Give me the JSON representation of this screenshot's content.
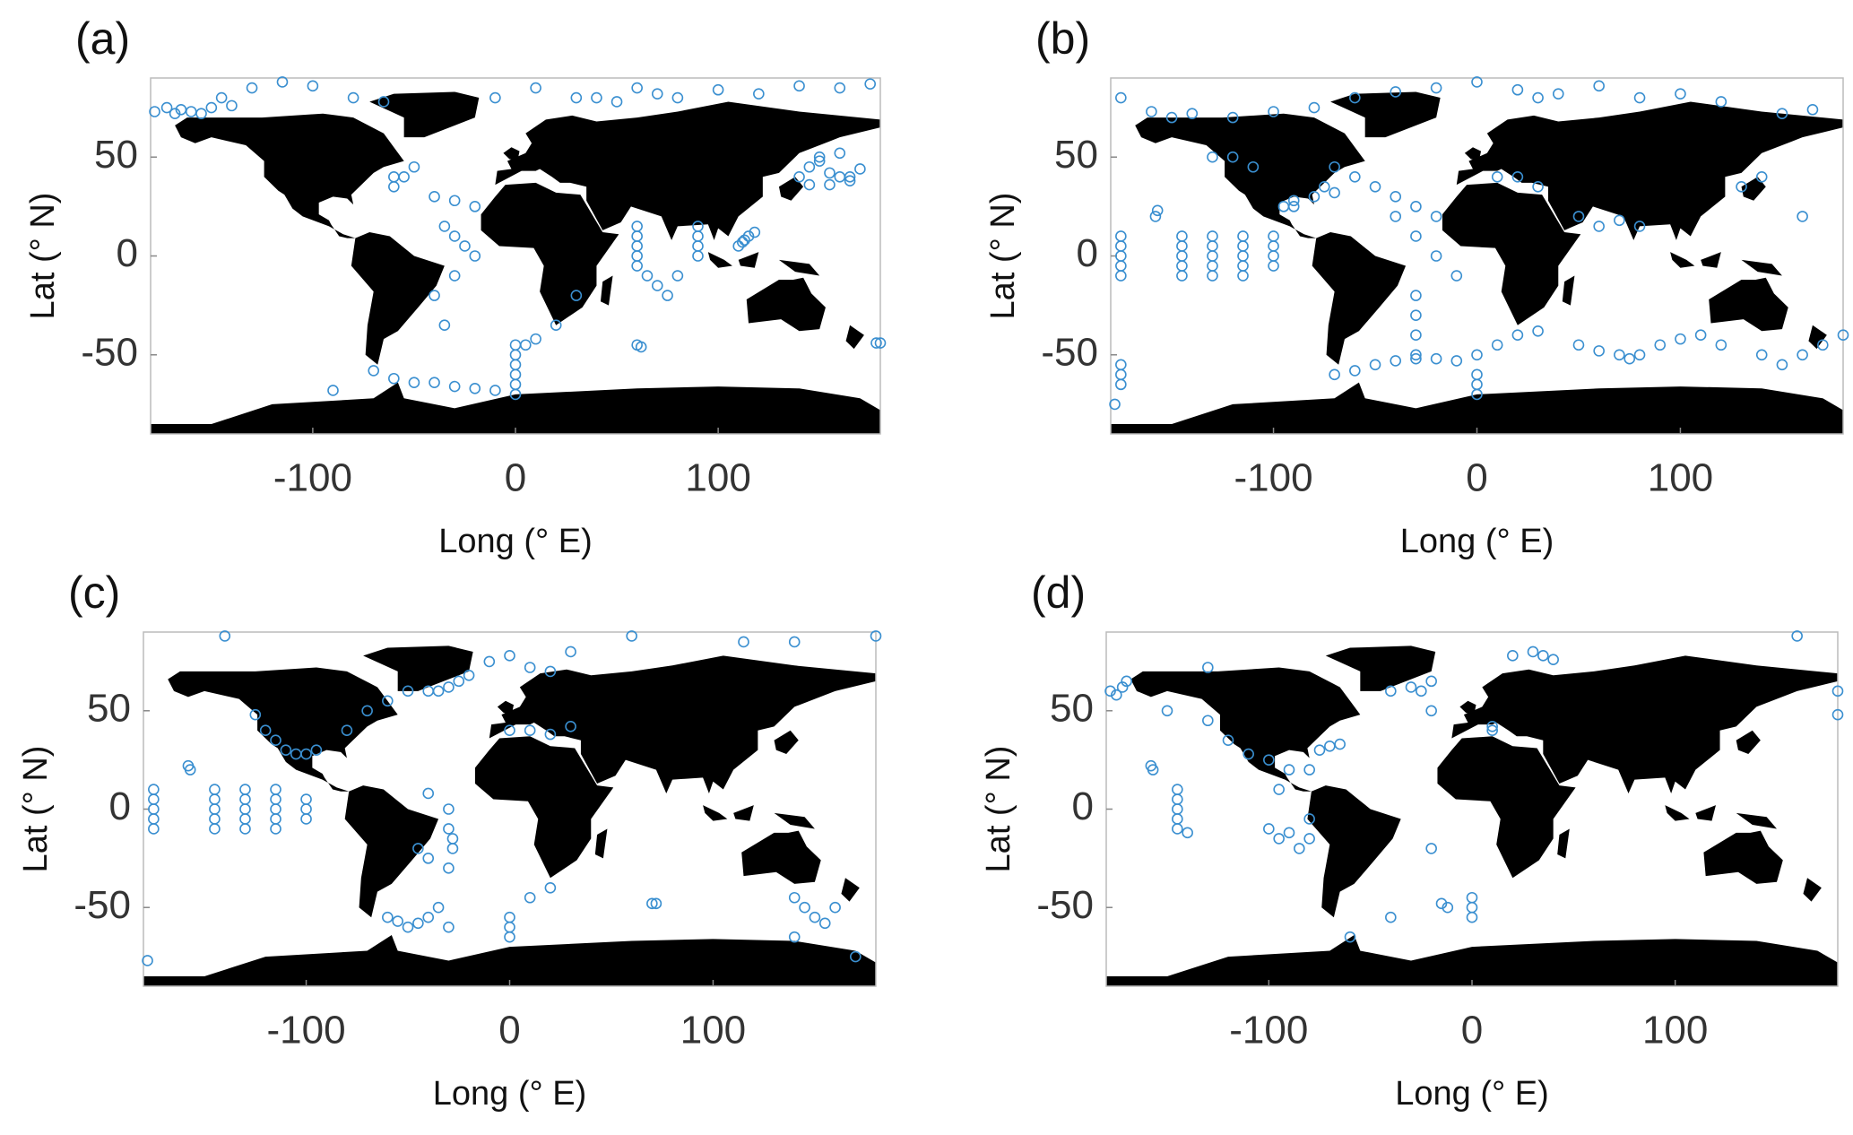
{
  "chart_data": [
    {
      "type": "scatter",
      "title": "(a)",
      "xlabel": "Long (° E)",
      "ylabel": "Lat (° N)",
      "color": "#3a8fd0",
      "xlim": [
        -180,
        180
      ],
      "ylim": [
        -90,
        90
      ],
      "xticks": [
        -100,
        0,
        100
      ],
      "yticks": [
        -50,
        0,
        50
      ],
      "x": [
        -178,
        -172,
        -168,
        -165,
        -160,
        -155,
        -150,
        -145,
        -140,
        -130,
        -115,
        -100,
        -80,
        -65,
        -60,
        -40,
        -30,
        -20,
        -10,
        10,
        30,
        40,
        50,
        60,
        70,
        80,
        100,
        120,
        140,
        160,
        175,
        140,
        145,
        150,
        155,
        160,
        165,
        170,
        145,
        155,
        165,
        150,
        160,
        -50,
        -55,
        -60,
        -35,
        -30,
        -25,
        -20,
        -30,
        -40,
        -35,
        60,
        60,
        60,
        60,
        60,
        65,
        70,
        75,
        80,
        90,
        90,
        90,
        90,
        110,
        113,
        115,
        118,
        112,
        -90,
        -70,
        -60,
        -50,
        -40,
        -30,
        -20,
        -10,
        0,
        0,
        0,
        0,
        0,
        0,
        5,
        10,
        20,
        30,
        60,
        62,
        178,
        180
      ],
      "y": [
        73,
        75,
        72,
        74,
        73,
        72,
        75,
        80,
        76,
        85,
        88,
        86,
        80,
        78,
        40,
        30,
        28,
        25,
        80,
        85,
        80,
        80,
        78,
        85,
        82,
        80,
        84,
        82,
        86,
        85,
        87,
        40,
        45,
        48,
        42,
        40,
        38,
        44,
        36,
        36,
        40,
        50,
        52,
        45,
        40,
        35,
        15,
        10,
        5,
        0,
        -10,
        -20,
        -35,
        15,
        10,
        5,
        0,
        -5,
        -10,
        -15,
        -20,
        -10,
        15,
        10,
        5,
        0,
        5,
        8,
        10,
        12,
        7,
        -68,
        -58,
        -62,
        -64,
        -64,
        -66,
        -67,
        -68,
        -70,
        -65,
        -60,
        -55,
        -50,
        -45,
        -45,
        -42,
        -35,
        -20,
        -45,
        -46,
        -44,
        -44
      ]
    },
    {
      "type": "scatter",
      "title": "(b)",
      "xlabel": "Long (° E)",
      "ylabel": "Lat (° N)",
      "color": "#3a8fd0",
      "xlim": [
        -180,
        180
      ],
      "ylim": [
        -90,
        90
      ],
      "xticks": [
        -100,
        0,
        100
      ],
      "yticks": [
        -50,
        0,
        50
      ],
      "x": [
        -175,
        -175,
        -175,
        -175,
        -175,
        -145,
        -145,
        -145,
        -145,
        -145,
        -130,
        -130,
        -130,
        -130,
        -130,
        -115,
        -115,
        -115,
        -115,
        -115,
        -100,
        -100,
        -100,
        -100,
        -158,
        -157,
        -175,
        -175,
        -175,
        -178,
        -175,
        -160,
        -150,
        -140,
        -120,
        -100,
        -80,
        -60,
        -40,
        -20,
        0,
        20,
        30,
        40,
        60,
        80,
        100,
        120,
        150,
        165,
        -130,
        -120,
        -110,
        -90,
        -80,
        -70,
        -75,
        -70,
        -60,
        -50,
        -40,
        -30,
        -20,
        -40,
        -30,
        -20,
        -10,
        -30,
        -30,
        -30,
        -30,
        -95,
        -90,
        10,
        20,
        30,
        50,
        60,
        70,
        80,
        -70,
        -60,
        -50,
        -40,
        -30,
        -20,
        -10,
        0,
        10,
        20,
        30,
        50,
        60,
        70,
        75,
        80,
        90,
        100,
        110,
        120,
        140,
        150,
        160,
        170,
        180,
        0,
        0,
        0,
        130,
        140,
        160
      ],
      "y": [
        -10,
        -5,
        0,
        5,
        10,
        -10,
        -5,
        0,
        5,
        10,
        -10,
        -5,
        0,
        5,
        10,
        -10,
        -5,
        0,
        5,
        10,
        -5,
        0,
        5,
        10,
        20,
        23,
        -55,
        -60,
        -65,
        -75,
        80,
        73,
        70,
        72,
        70,
        73,
        75,
        80,
        83,
        85,
        88,
        84,
        80,
        82,
        86,
        80,
        82,
        78,
        72,
        74,
        50,
        50,
        45,
        25,
        30,
        45,
        35,
        32,
        40,
        35,
        30,
        25,
        20,
        20,
        10,
        0,
        -10,
        -20,
        -30,
        -40,
        -50,
        25,
        28,
        40,
        40,
        35,
        20,
        15,
        18,
        15,
        -60,
        -58,
        -55,
        -53,
        -52,
        -52,
        -53,
        -50,
        -45,
        -40,
        -38,
        -45,
        -48,
        -50,
        -52,
        -50,
        -45,
        -42,
        -40,
        -45,
        -50,
        -55,
        -50,
        -45,
        -40,
        -60,
        -65,
        -70,
        35,
        40,
        20
      ]
    },
    {
      "type": "scatter",
      "title": "(c)",
      "xlabel": "Long (° E)",
      "ylabel": "Lat (° N)",
      "color": "#3a8fd0",
      "xlim": [
        -180,
        180
      ],
      "ylim": [
        -90,
        90
      ],
      "xticks": [
        -100,
        0,
        100
      ],
      "yticks": [
        -50,
        0,
        50
      ],
      "x": [
        -175,
        -175,
        -175,
        -175,
        -175,
        -145,
        -145,
        -145,
        -145,
        -145,
        -130,
        -130,
        -130,
        -130,
        -130,
        -115,
        -115,
        -115,
        -115,
        -115,
        -100,
        -100,
        -100,
        -158,
        -157,
        -178,
        -125,
        -120,
        -115,
        -110,
        -105,
        -100,
        -95,
        -80,
        -70,
        -60,
        -50,
        -40,
        -35,
        -30,
        -25,
        -20,
        -10,
        0,
        10,
        20,
        30,
        -30,
        -40,
        -45,
        -40,
        -30,
        -28,
        -28,
        -30,
        -60,
        -55,
        -50,
        -45,
        -40,
        -35,
        -30,
        0,
        0,
        0,
        10,
        20,
        70,
        72,
        140,
        145,
        150,
        155,
        140,
        160,
        170,
        -140,
        0,
        30,
        60,
        115,
        140,
        180,
        10,
        20
      ],
      "y": [
        -10,
        -5,
        0,
        5,
        10,
        -10,
        -5,
        0,
        5,
        10,
        -10,
        -5,
        0,
        5,
        10,
        -10,
        -5,
        0,
        5,
        10,
        -5,
        0,
        5,
        22,
        20,
        -77,
        48,
        40,
        35,
        30,
        28,
        28,
        30,
        40,
        50,
        55,
        60,
        60,
        60,
        62,
        65,
        68,
        75,
        78,
        72,
        70,
        80,
        0,
        8,
        -20,
        -25,
        -10,
        -15,
        -20,
        -30,
        -55,
        -57,
        -60,
        -58,
        -55,
        -50,
        -60,
        -55,
        -60,
        -65,
        -45,
        -40,
        -48,
        -48,
        -45,
        -50,
        -55,
        -58,
        -65,
        -50,
        -75,
        88,
        40,
        42,
        88,
        85,
        85,
        88,
        40,
        38
      ]
    },
    {
      "type": "scatter",
      "title": "(d)",
      "xlabel": "Long (° E)",
      "ylabel": "Lat (° N)",
      "color": "#3a8fd0",
      "xlim": [
        -180,
        180
      ],
      "ylim": [
        -90,
        90
      ],
      "xticks": [
        -100,
        0,
        100
      ],
      "yticks": [
        -50,
        0,
        50
      ],
      "x": [
        -178,
        -175,
        -172,
        -145,
        -145,
        -145,
        -145,
        -145,
        -140,
        -158,
        -157,
        -130,
        -120,
        -110,
        -100,
        -95,
        -90,
        -80,
        -75,
        -70,
        -65,
        -100,
        -95,
        -90,
        -85,
        -80,
        -80,
        -60,
        -40,
        -20,
        -15,
        -12,
        0,
        0,
        0,
        -40,
        -30,
        -25,
        -20,
        10,
        20,
        30,
        35,
        40,
        160,
        180,
        180,
        -150,
        -170,
        -130,
        -20,
        10
      ],
      "y": [
        60,
        58,
        62,
        10,
        5,
        0,
        -5,
        -10,
        -12,
        22,
        20,
        45,
        35,
        28,
        25,
        10,
        20,
        20,
        30,
        32,
        33,
        -10,
        -15,
        -12,
        -20,
        -15,
        -5,
        -65,
        -55,
        -20,
        -48,
        -50,
        -45,
        -50,
        -55,
        60,
        62,
        60,
        50,
        42,
        78,
        80,
        78,
        76,
        88,
        48,
        60,
        50,
        65,
        72,
        65,
        40
      ]
    }
  ]
}
